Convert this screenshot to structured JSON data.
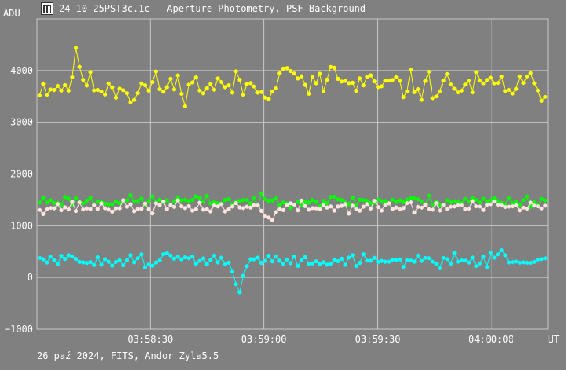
{
  "window": {
    "title": "24-10-25PST3c.1c - Aperture Photometry, PSF Background",
    "icon": "aperture-app-icon"
  },
  "footer": {
    "info": "26 paź 2024, FITS, Andor Zyla5.5"
  },
  "chart_data": {
    "type": "scatter",
    "ylabel": "ADU",
    "xlabel": "UT",
    "ylim": [
      -1000,
      5000
    ],
    "y_ticks": [
      {
        "value": 4000,
        "label": "4000"
      },
      {
        "value": 3000,
        "label": "3000"
      },
      {
        "value": 2000,
        "label": "2000"
      },
      {
        "value": 1000,
        "label": "1000"
      },
      {
        "value": 0,
        "label": "0"
      },
      {
        "value": -1000,
        "label": "−1000"
      }
    ],
    "x_ticks": [
      {
        "value": 0.222,
        "label": "03:58:30"
      },
      {
        "value": 0.444,
        "label": "03:59:00"
      },
      {
        "value": 0.667,
        "label": "03:59:30"
      },
      {
        "value": 0.889,
        "label": "04:00:00"
      }
    ],
    "grid": true,
    "series": [
      {
        "color": "#ffff00",
        "points": 140,
        "base": 3700,
        "noise": 220,
        "seed": 11,
        "bumps": [
          [
            0.08,
            500
          ],
          [
            0.49,
            480
          ],
          [
            0.58,
            350
          ],
          [
            0.19,
            -200
          ]
        ]
      },
      {
        "color": "#00ff00",
        "points": 140,
        "base": 1480,
        "noise": 80,
        "seed": 23,
        "bumps": []
      },
      {
        "color": "#ffe4e1",
        "points": 140,
        "base": 1360,
        "noise": 90,
        "seed": 37,
        "bumps": [
          [
            0.46,
            -250
          ]
        ]
      },
      {
        "color": "#00ffff",
        "points": 140,
        "base": 330,
        "noise": 90,
        "seed": 51,
        "bumps": [
          [
            0.395,
            -620
          ],
          [
            0.9,
            150
          ],
          [
            0.25,
            120
          ]
        ]
      }
    ]
  }
}
